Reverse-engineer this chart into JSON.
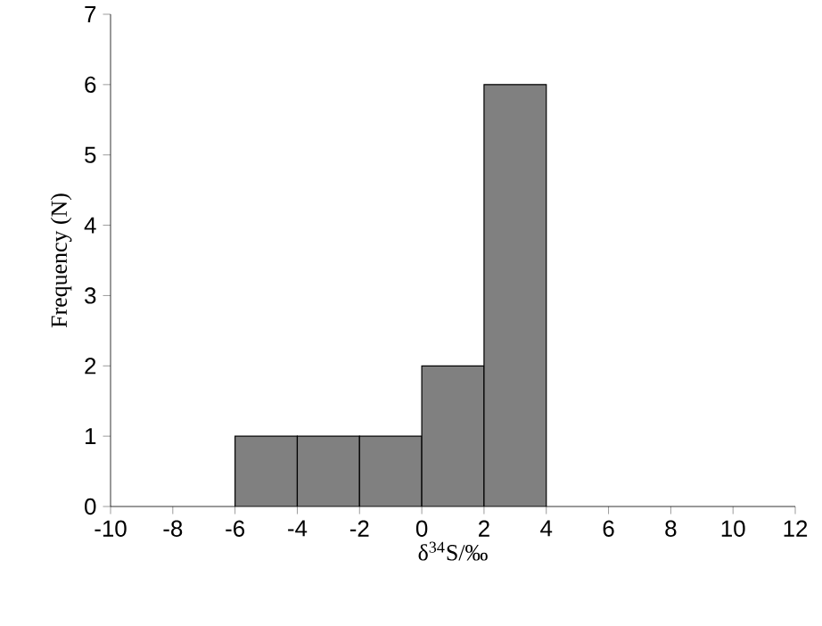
{
  "chart_data": {
    "type": "histogram",
    "xlabel": "δ$^{34}$S/‰",
    "ylabel": "Frequency (N)",
    "bins": [
      -6,
      -4,
      -2,
      0,
      2,
      4
    ],
    "values": [
      1,
      1,
      1,
      2,
      6
    ],
    "color": "#808080",
    "xlim": [
      -10,
      12
    ],
    "xticks": [
      -10,
      -8,
      -6,
      -4,
      -2,
      0,
      2,
      4,
      6,
      8,
      10,
      12
    ],
    "ylim": [
      0,
      7
    ],
    "yticks": [
      0,
      1,
      2,
      3,
      4,
      5,
      6,
      7
    ]
  }
}
